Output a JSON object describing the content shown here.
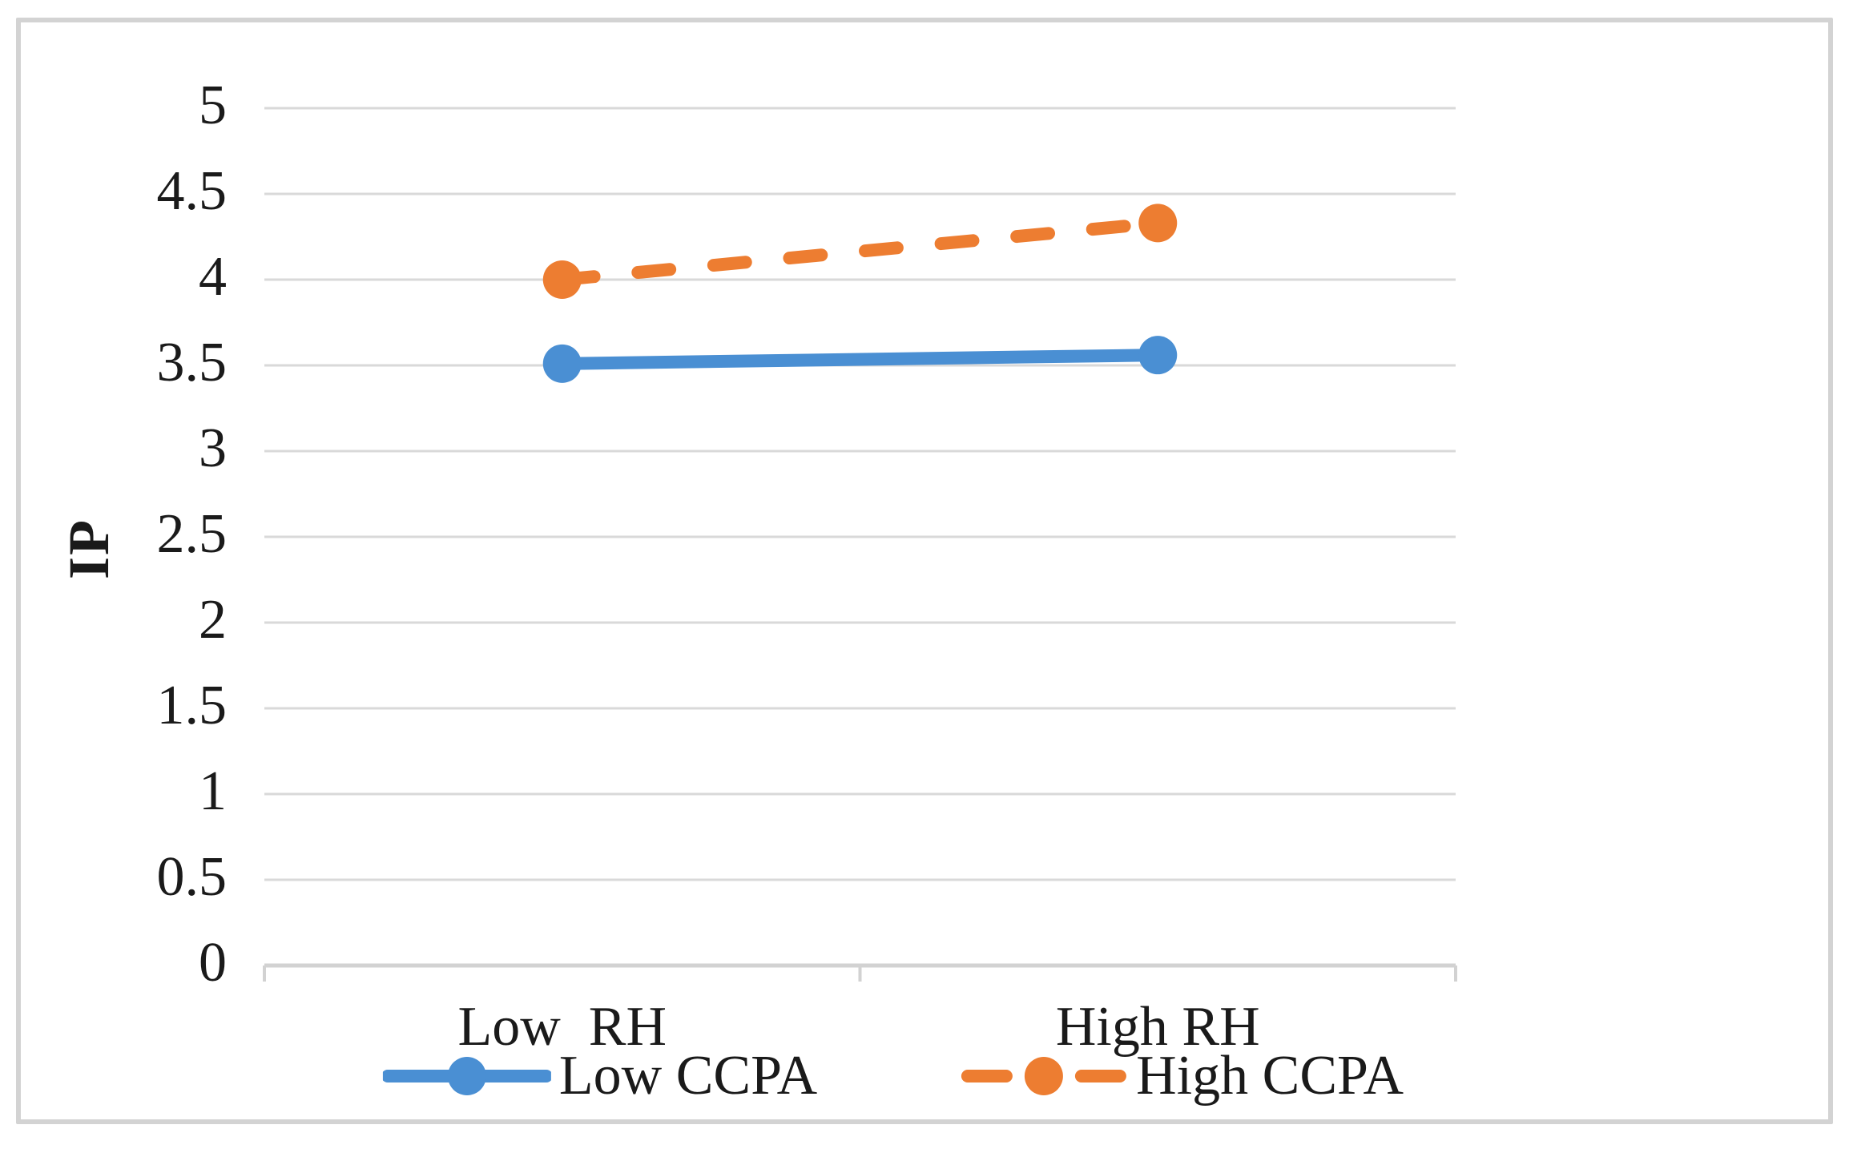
{
  "chart_data": {
    "type": "line",
    "title": "",
    "xlabel": "",
    "ylabel": "IP",
    "categories": [
      "Low  RH",
      "High RH"
    ],
    "series": [
      {
        "name": "Low CCPA",
        "values": [
          3.51,
          3.56
        ],
        "color": "#4A8FD3",
        "style": "solid",
        "marker": "circle"
      },
      {
        "name": "High CCPA",
        "values": [
          4.0,
          4.33
        ],
        "color": "#ED7D31",
        "style": "dashed",
        "marker": "circle"
      }
    ],
    "ylim": [
      0,
      5
    ],
    "ytick_step": 0.5,
    "yticks": [
      "5",
      "4.5",
      "4",
      "3.5",
      "3",
      "2.5",
      "2",
      "1.5",
      "1",
      "0.5",
      "0"
    ],
    "grid": true,
    "legend_position": "bottom",
    "colors": {
      "gridline": "#d9d9d9",
      "axis": "#d2d2d2",
      "text": "#1a1a1a",
      "background": "#ffffff",
      "figure_border": "#d3d3d3"
    }
  }
}
